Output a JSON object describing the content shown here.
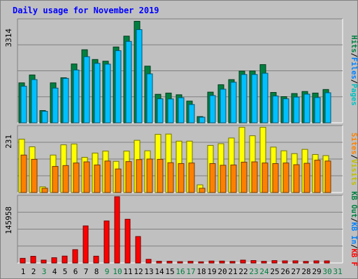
{
  "title": "Daily usage for November 2019",
  "colors": {
    "hits": "#008040",
    "files": "#00c0ff",
    "visits": "#ffff00",
    "sites": "#ff8000",
    "kbytes": "#ff0000",
    "background": "#c0c0c0",
    "grid": "#808080"
  },
  "legends": {
    "panel1": [
      {
        "text": "Pages",
        "color": "#00c0c0"
      },
      {
        "text": "/",
        "color": "#000000"
      },
      {
        "text": "Files",
        "color": "#0080ff"
      },
      {
        "text": "/",
        "color": "#000000"
      },
      {
        "text": "Hits",
        "color": "#008040"
      }
    ],
    "panel2": [
      {
        "text": "Visits",
        "color": "#c0c000"
      },
      {
        "text": "/",
        "color": "#000000"
      },
      {
        "text": "Sites",
        "color": "#ff8000"
      }
    ],
    "panel3": [
      {
        "text": "KB F",
        "color": "#ff0000"
      },
      {
        "text": "/",
        "color": "#000000"
      },
      {
        "text": "KB In",
        "color": "#0080ff"
      },
      {
        "text": "/",
        "color": "#000000"
      },
      {
        "text": "KB Out",
        "color": "#008040"
      }
    ]
  },
  "chart_data": [
    {
      "type": "bar",
      "name": "Hits / Files / Pages",
      "ymax_label": "3314",
      "ylim": [
        0,
        3314
      ],
      "categories": [
        "1",
        "2",
        "3",
        "4",
        "5",
        "6",
        "7",
        "8",
        "9",
        "10",
        "11",
        "12",
        "13",
        "14",
        "15",
        "16",
        "17",
        "18",
        "19",
        "20",
        "21",
        "22",
        "23",
        "24",
        "25",
        "26",
        "27",
        "28",
        "29",
        "30",
        "31"
      ],
      "series": [
        {
          "name": "Hits",
          "values": [
            1290,
            1545,
            395,
            1290,
            1455,
            1900,
            2360,
            2045,
            1990,
            2450,
            2800,
            3280,
            1830,
            920,
            960,
            905,
            700,
            200,
            990,
            1230,
            1395,
            1670,
            1675,
            1880,
            980,
            845,
            945,
            1010,
            960,
            1075,
            0
          ]
        },
        {
          "name": "Files",
          "values": [
            1180,
            1395,
            370,
            1120,
            1435,
            1705,
            2135,
            1920,
            1895,
            2330,
            2630,
            3010,
            1580,
            775,
            770,
            810,
            590,
            180,
            880,
            1085,
            1310,
            1560,
            1560,
            1600,
            865,
            775,
            830,
            925,
            815,
            970,
            0
          ]
        }
      ]
    },
    {
      "type": "bar",
      "name": "Visits / Sites",
      "ymax_label": "231",
      "ylim": [
        0,
        231
      ],
      "categories": [
        "1",
        "2",
        "3",
        "4",
        "5",
        "6",
        "7",
        "8",
        "9",
        "10",
        "11",
        "12",
        "13",
        "14",
        "15",
        "16",
        "17",
        "18",
        "19",
        "20",
        "21",
        "22",
        "23",
        "24",
        "25",
        "26",
        "27",
        "28",
        "29",
        "30",
        "31"
      ],
      "series": [
        {
          "name": "Visits",
          "values": [
            188,
            161,
            20,
            132,
            168,
            171,
            124,
            139,
            146,
            110,
            146,
            184,
            147,
            205,
            206,
            181,
            181,
            27,
            166,
            172,
            192,
            230,
            200,
            230,
            160,
            147,
            137,
            152,
            134,
            130,
            0
          ]
        },
        {
          "name": "Sites",
          "values": [
            132,
            117,
            15,
            92,
            95,
            104,
            108,
            97,
            111,
            83,
            109,
            116,
            118,
            117,
            105,
            102,
            104,
            15,
            102,
            96,
            97,
            107,
            108,
            104,
            102,
            104,
            98,
            103,
            114,
            111,
            0
          ]
        }
      ]
    },
    {
      "type": "bar",
      "name": "KB F / KB In / KB Out",
      "ymax_label": "145958",
      "ylim": [
        0,
        145958
      ],
      "categories": [
        "1",
        "2",
        "3",
        "4",
        "5",
        "6",
        "7",
        "8",
        "9",
        "10",
        "11",
        "12",
        "13",
        "14",
        "15",
        "16",
        "17",
        "18",
        "19",
        "20",
        "21",
        "22",
        "23",
        "24",
        "25",
        "26",
        "27",
        "28",
        "29",
        "30",
        "31"
      ],
      "series": [
        {
          "name": "KB F",
          "values": [
            10200,
            14700,
            6300,
            11600,
            15100,
            29300,
            81600,
            14900,
            92500,
            145958,
            96300,
            58200,
            8000,
            3700,
            3700,
            2900,
            3600,
            2600,
            4200,
            4100,
            3400,
            6200,
            5300,
            3600,
            5200,
            4600,
            4700,
            3400,
            4600,
            4500,
            0
          ]
        }
      ]
    }
  ],
  "x_labels": [
    {
      "text": "1",
      "color": "#000000"
    },
    {
      "text": "2",
      "color": "#000000"
    },
    {
      "text": "3",
      "color": "#008040"
    },
    {
      "text": "4",
      "color": "#000000"
    },
    {
      "text": "5",
      "color": "#000000"
    },
    {
      "text": "6",
      "color": "#000000"
    },
    {
      "text": "7",
      "color": "#000000"
    },
    {
      "text": "8",
      "color": "#000000"
    },
    {
      "text": "9",
      "color": "#008040"
    },
    {
      "text": "10",
      "color": "#008040"
    },
    {
      "text": "11",
      "color": "#000000"
    },
    {
      "text": "12",
      "color": "#000000"
    },
    {
      "text": "13",
      "color": "#000000"
    },
    {
      "text": "14",
      "color": "#000000"
    },
    {
      "text": "15",
      "color": "#000000"
    },
    {
      "text": "16",
      "color": "#008040"
    },
    {
      "text": "17",
      "color": "#008040"
    },
    {
      "text": "18",
      "color": "#000000"
    },
    {
      "text": "19",
      "color": "#000000"
    },
    {
      "text": "20",
      "color": "#000000"
    },
    {
      "text": "21",
      "color": "#000000"
    },
    {
      "text": "22",
      "color": "#000000"
    },
    {
      "text": "23",
      "color": "#008040"
    },
    {
      "text": "24",
      "color": "#008040"
    },
    {
      "text": "25",
      "color": "#000000"
    },
    {
      "text": "26",
      "color": "#000000"
    },
    {
      "text": "27",
      "color": "#000000"
    },
    {
      "text": "28",
      "color": "#000000"
    },
    {
      "text": "29",
      "color": "#000000"
    },
    {
      "text": "30",
      "color": "#008040"
    },
    {
      "text": "31",
      "color": "#008040"
    }
  ]
}
